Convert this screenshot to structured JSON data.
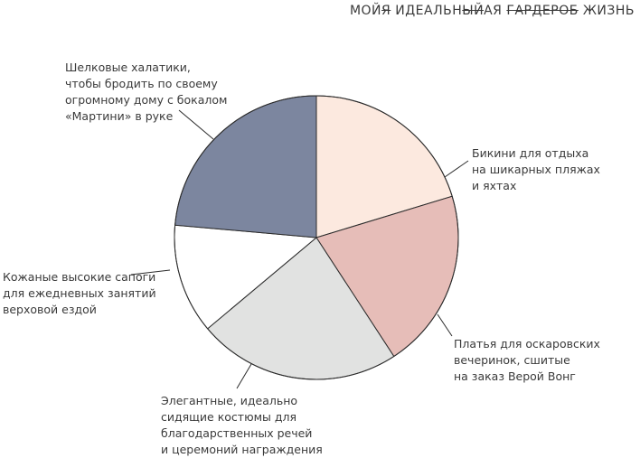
{
  "title": {
    "part1": "МОЙ",
    "part1_strike": "Я",
    "part2": "ИДЕАЛЬН",
    "part2_alt": "ЫЙ",
    "part2_end": "АЯ",
    "strike_word": "ГАРДЕРОБ",
    "last_word": "ЖИЗНЬ"
  },
  "chart_data": {
    "type": "pie",
    "start_angle_deg": 0,
    "slices": [
      {
        "label": "Бикини для отдыха\nна шикарных пляжах\nи яхтах",
        "value": 20.3,
        "color": "#fce9df"
      },
      {
        "label": "Платья для оскаровских\nвечеринок, сшитые\nна заказ Верой Вонг",
        "value": 20.5,
        "color": "#e6bdb8"
      },
      {
        "label": "Элегантные, идеально\nсидящие костюмы для\nблагодарственных речей\nи церемоний награждения",
        "value": 23.1,
        "color": "#e1e2e1"
      },
      {
        "label": "Кожаные высокие сапоги\nдля ежедневных занятий\nверховой ездой",
        "value": 12.5,
        "color": "#ffffff"
      },
      {
        "label": "Шелковые халатики,\nчтобы бродить по своему\nогромному дому с бокалом\n«Мартини» в руке",
        "value": 23.6,
        "color": "#7c869f"
      }
    ]
  }
}
